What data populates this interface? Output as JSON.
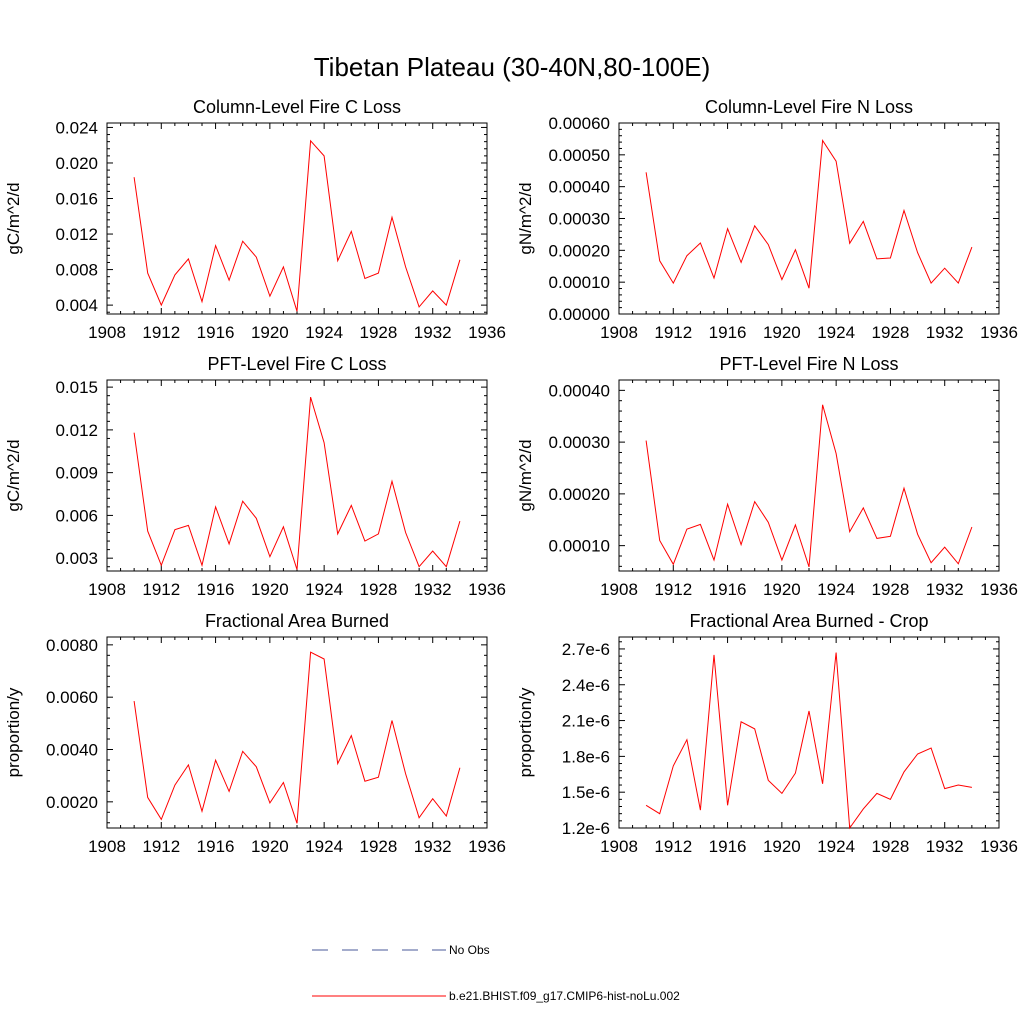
{
  "figure": {
    "title": "Tibetan Plateau (30-40N,80-100E)"
  },
  "chart_data": [
    {
      "type": "line",
      "title": "Column-Level Fire C Loss",
      "ylabel": "gC/m^2/d",
      "xlim": [
        1908,
        1936
      ],
      "ylim": [
        0.003,
        0.0245
      ],
      "x_ticks": [
        1908,
        1912,
        1916,
        1920,
        1924,
        1928,
        1932,
        1936
      ],
      "y_ticks": [
        0.004,
        0.008,
        0.012,
        0.016,
        0.02,
        0.024
      ],
      "y_tick_labels": [
        "0.004",
        "0.008",
        "0.012",
        "0.016",
        "0.020",
        "0.024"
      ],
      "x": [
        1910,
        1911,
        1912,
        1913,
        1914,
        1915,
        1916,
        1917,
        1918,
        1919,
        1920,
        1921,
        1922,
        1923,
        1924,
        1925,
        1926,
        1927,
        1928,
        1929,
        1930,
        1931,
        1932,
        1933,
        1934
      ],
      "series": [
        {
          "values": [
            0.0184,
            0.0076,
            0.004,
            0.0074,
            0.0092,
            0.0044,
            0.0107,
            0.0068,
            0.0112,
            0.0094,
            0.005,
            0.0083,
            0.0033,
            0.0225,
            0.0208,
            0.009,
            0.0123,
            0.007,
            0.0076,
            0.0139,
            0.0083,
            0.0038,
            0.0056,
            0.004,
            0.0091
          ]
        }
      ]
    },
    {
      "type": "line",
      "title": "Column-Level Fire N Loss",
      "ylabel": "gN/m^2/d",
      "xlim": [
        1908,
        1936
      ],
      "ylim": [
        0,
        0.0006
      ],
      "x_ticks": [
        1908,
        1912,
        1916,
        1920,
        1924,
        1928,
        1932,
        1936
      ],
      "y_ticks": [
        0,
        0.0001,
        0.0002,
        0.0003,
        0.0004,
        0.0005,
        0.0006
      ],
      "y_tick_labels": [
        "0.00000",
        "0.00010",
        "0.00020",
        "0.00030",
        "0.00040",
        "0.00050",
        "0.00060"
      ],
      "x": [
        1910,
        1911,
        1912,
        1913,
        1914,
        1915,
        1916,
        1917,
        1918,
        1919,
        1920,
        1921,
        1922,
        1923,
        1924,
        1925,
        1926,
        1927,
        1928,
        1929,
        1930,
        1931,
        1932,
        1933,
        1934
      ],
      "series": [
        {
          "values": [
            0.000445,
            0.000167,
            9.7e-05,
            0.000183,
            0.000223,
            0.000113,
            0.000268,
            0.000162,
            0.000277,
            0.000218,
            0.000108,
            0.000202,
            8.1e-05,
            0.000545,
            0.00048,
            0.000222,
            0.000291,
            0.000173,
            0.000176,
            0.000325,
            0.000193,
            9.7e-05,
            0.000144,
            9.7e-05,
            0.00021
          ]
        }
      ]
    },
    {
      "type": "line",
      "title": "PFT-Level Fire C Loss",
      "ylabel": "gC/m^2/d",
      "xlim": [
        1908,
        1936
      ],
      "ylim": [
        0.0021,
        0.0155
      ],
      "x_ticks": [
        1908,
        1912,
        1916,
        1920,
        1924,
        1928,
        1932,
        1936
      ],
      "y_ticks": [
        0.003,
        0.006,
        0.009,
        0.012,
        0.015
      ],
      "y_tick_labels": [
        "0.003",
        "0.006",
        "0.009",
        "0.012",
        "0.015"
      ],
      "x": [
        1910,
        1911,
        1912,
        1913,
        1914,
        1915,
        1916,
        1917,
        1918,
        1919,
        1920,
        1921,
        1922,
        1923,
        1924,
        1925,
        1926,
        1927,
        1928,
        1929,
        1930,
        1931,
        1932,
        1933,
        1934
      ],
      "series": [
        {
          "values": [
            0.0118,
            0.0049,
            0.0025,
            0.005,
            0.0053,
            0.0025,
            0.0066,
            0.004,
            0.007,
            0.0058,
            0.0031,
            0.0052,
            0.0022,
            0.0143,
            0.0111,
            0.0047,
            0.0067,
            0.0042,
            0.0047,
            0.0084,
            0.0048,
            0.0024,
            0.0035,
            0.0024,
            0.0056
          ]
        }
      ]
    },
    {
      "type": "line",
      "title": "PFT-Level Fire N Loss",
      "ylabel": "gN/m^2/d",
      "xlim": [
        1908,
        1936
      ],
      "ylim": [
        5.1e-05,
        0.00042
      ],
      "x_ticks": [
        1908,
        1912,
        1916,
        1920,
        1924,
        1928,
        1932,
        1936
      ],
      "y_ticks": [
        0.0001,
        0.0002,
        0.0003,
        0.0004
      ],
      "y_tick_labels": [
        "0.00010",
        "0.00020",
        "0.00030",
        "0.00040"
      ],
      "x": [
        1910,
        1911,
        1912,
        1913,
        1914,
        1915,
        1916,
        1917,
        1918,
        1919,
        1920,
        1921,
        1922,
        1923,
        1924,
        1925,
        1926,
        1927,
        1928,
        1929,
        1930,
        1931,
        1932,
        1933,
        1934
      ],
      "series": [
        {
          "values": [
            0.000303,
            0.00011,
            6.4e-05,
            0.000132,
            0.000141,
            7.2e-05,
            0.00018,
            0.000102,
            0.000185,
            0.000145,
            7.2e-05,
            0.00014,
            5.9e-05,
            0.000372,
            0.000278,
            0.000127,
            0.000173,
            0.000114,
            0.000118,
            0.000211,
            0.000122,
            6.7e-05,
            9.7e-05,
            6.5e-05,
            0.000136
          ]
        }
      ]
    },
    {
      "type": "line",
      "title": "Fractional Area Burned",
      "ylabel": "proportion/y",
      "xlim": [
        1908,
        1936
      ],
      "ylim": [
        0.001,
        0.0083
      ],
      "x_ticks": [
        1908,
        1912,
        1916,
        1920,
        1924,
        1928,
        1932,
        1936
      ],
      "y_ticks": [
        0.002,
        0.004,
        0.006,
        0.008
      ],
      "y_tick_labels": [
        "0.0020",
        "0.0040",
        "0.0060",
        "0.0080"
      ],
      "x": [
        1910,
        1911,
        1912,
        1913,
        1914,
        1915,
        1916,
        1917,
        1918,
        1919,
        1920,
        1921,
        1922,
        1923,
        1924,
        1925,
        1926,
        1927,
        1928,
        1929,
        1930,
        1931,
        1932,
        1933,
        1934
      ],
      "series": [
        {
          "values": [
            0.00585,
            0.00217,
            0.00133,
            0.00264,
            0.00341,
            0.00164,
            0.00359,
            0.0024,
            0.00393,
            0.00334,
            0.00196,
            0.00274,
            0.00118,
            0.00772,
            0.00746,
            0.00346,
            0.00453,
            0.00279,
            0.00294,
            0.00511,
            0.00307,
            0.00139,
            0.00212,
            0.00146,
            0.0033
          ]
        }
      ]
    },
    {
      "type": "line",
      "title": "Fractional Area Burned - Crop",
      "ylabel": "proportion/y",
      "xlim": [
        1908,
        1936
      ],
      "ylim": [
        1.2e-06,
        2.8e-06
      ],
      "x_ticks": [
        1908,
        1912,
        1916,
        1920,
        1924,
        1928,
        1932,
        1936
      ],
      "y_ticks": [
        1.2e-06,
        1.5e-06,
        1.8e-06,
        2.1e-06,
        2.4e-06,
        2.7e-06
      ],
      "y_tick_labels": [
        "1.2e-6",
        "1.5e-6",
        "1.8e-6",
        "2.1e-6",
        "2.4e-6",
        "2.7e-6"
      ],
      "x": [
        1910,
        1911,
        1912,
        1913,
        1914,
        1915,
        1916,
        1917,
        1918,
        1919,
        1920,
        1921,
        1922,
        1923,
        1924,
        1925,
        1926,
        1927,
        1928,
        1929,
        1930,
        1931,
        1932,
        1933,
        1934
      ],
      "series": [
        {
          "values": [
            1.39e-06,
            1.32e-06,
            1.72e-06,
            1.94e-06,
            1.35e-06,
            2.65e-06,
            1.39e-06,
            2.09e-06,
            2.03e-06,
            1.6e-06,
            1.49e-06,
            1.66e-06,
            2.18e-06,
            1.57e-06,
            2.67e-06,
            1.2e-06,
            1.36e-06,
            1.49e-06,
            1.44e-06,
            1.67e-06,
            1.82e-06,
            1.87e-06,
            1.53e-06,
            1.56e-06,
            1.54e-06
          ]
        }
      ]
    }
  ],
  "legend": {
    "entries": [
      {
        "label": "No Obs",
        "color": "#4a5a9a",
        "style": "dashed"
      },
      {
        "label": "b.e21.BHIST.f09_g17.CMIP6-hist-noLu.002",
        "color": "#ff0000",
        "style": "solid"
      }
    ]
  },
  "colors": {
    "line": "#ff0000",
    "axis": "#000000"
  }
}
